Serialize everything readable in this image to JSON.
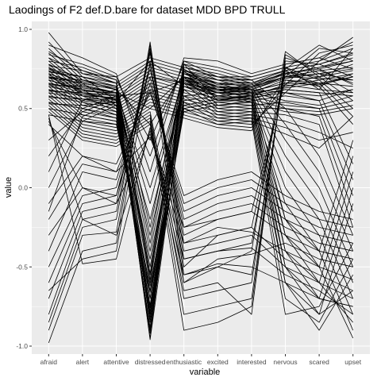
{
  "chart_data": {
    "type": "line",
    "title": "Laodings of F2 def.D.bare for dataset MDD BPD TRULL",
    "xlabel": "variable",
    "ylabel": "value",
    "categories": [
      "afraid",
      "alert",
      "attentive",
      "distressed",
      "enthusiastic",
      "excited",
      "interested",
      "nervous",
      "scared",
      "upset"
    ],
    "ylim": [
      -1.05,
      1.05
    ],
    "yticks": [
      -1.0,
      -0.5,
      0.0,
      0.5,
      1.0
    ],
    "ytick_labels": [
      "-1.0",
      "-0.5",
      "0.0",
      "0.5",
      "1.0"
    ],
    "grid": true,
    "legend": "none",
    "series": [
      {
        "values": [
          0.72,
          0.65,
          0.6,
          -0.95,
          0.75,
          0.62,
          0.64,
          0.7,
          0.72,
          0.68
        ]
      },
      {
        "values": [
          0.68,
          0.62,
          0.58,
          -0.9,
          0.7,
          0.6,
          0.61,
          0.66,
          0.7,
          0.74
        ]
      },
      {
        "values": [
          0.75,
          0.66,
          0.62,
          -0.85,
          0.72,
          0.64,
          0.63,
          0.72,
          0.75,
          0.8
        ]
      },
      {
        "values": [
          0.7,
          0.6,
          0.55,
          -0.8,
          0.68,
          0.58,
          0.6,
          0.68,
          0.66,
          0.7
        ]
      },
      {
        "values": [
          0.65,
          0.58,
          0.57,
          -0.75,
          0.66,
          0.57,
          0.58,
          0.65,
          0.62,
          0.6
        ]
      },
      {
        "values": [
          0.78,
          0.68,
          0.64,
          -0.7,
          0.74,
          0.66,
          0.66,
          0.74,
          0.78,
          0.85
        ]
      },
      {
        "values": [
          0.62,
          0.55,
          0.52,
          -0.65,
          0.64,
          0.55,
          0.56,
          0.62,
          0.6,
          0.58
        ]
      },
      {
        "values": [
          0.72,
          0.64,
          0.6,
          -0.6,
          0.7,
          0.62,
          0.62,
          0.7,
          0.74,
          0.66
        ]
      },
      {
        "values": [
          0.66,
          0.6,
          0.58,
          -0.55,
          0.67,
          0.6,
          0.59,
          0.64,
          0.68,
          0.72
        ]
      },
      {
        "values": [
          0.74,
          0.67,
          0.63,
          -0.5,
          0.72,
          0.63,
          0.64,
          0.73,
          0.7,
          0.78
        ]
      },
      {
        "values": [
          0.6,
          0.56,
          0.54,
          -0.45,
          0.62,
          0.56,
          0.57,
          0.6,
          0.58,
          0.62
        ]
      },
      {
        "values": [
          0.7,
          0.62,
          0.59,
          -0.4,
          0.69,
          0.61,
          0.62,
          0.69,
          0.72,
          0.75
        ]
      },
      {
        "values": [
          0.68,
          0.61,
          0.6,
          -0.3,
          0.68,
          0.6,
          0.61,
          0.66,
          0.65,
          0.7
        ]
      },
      {
        "values": [
          0.64,
          0.59,
          0.56,
          -0.2,
          0.66,
          0.58,
          0.6,
          0.63,
          0.66,
          0.64
        ]
      },
      {
        "values": [
          0.76,
          0.66,
          0.62,
          -0.1,
          0.73,
          0.65,
          0.65,
          0.72,
          0.76,
          0.82
        ]
      },
      {
        "values": [
          0.71,
          0.63,
          0.6,
          0.0,
          0.7,
          0.62,
          0.63,
          0.7,
          0.69,
          0.68
        ]
      },
      {
        "values": [
          -0.98,
          -0.4,
          -0.35,
          0.92,
          -0.55,
          -0.48,
          -0.5,
          -0.6,
          -0.7,
          -0.75
        ]
      },
      {
        "values": [
          -0.9,
          -0.3,
          -0.28,
          0.88,
          -0.45,
          -0.4,
          -0.38,
          -0.55,
          -0.65,
          -0.8
        ]
      },
      {
        "values": [
          -0.85,
          -0.25,
          -0.2,
          0.9,
          -0.4,
          -0.35,
          -0.3,
          -0.5,
          -0.6,
          -0.7
        ]
      },
      {
        "values": [
          -0.8,
          -0.2,
          -0.15,
          0.85,
          -0.5,
          -0.3,
          -0.25,
          -0.45,
          -0.55,
          -0.65
        ]
      },
      {
        "values": [
          -0.7,
          -0.15,
          -0.1,
          0.86,
          -0.35,
          -0.25,
          -0.28,
          -0.4,
          -0.5,
          -0.58
        ]
      },
      {
        "values": [
          -0.65,
          -0.45,
          -0.4,
          0.8,
          -0.6,
          -0.45,
          -0.42,
          -0.35,
          -0.45,
          -0.5
        ]
      },
      {
        "values": [
          -0.6,
          -0.1,
          -0.05,
          0.78,
          -0.3,
          -0.2,
          -0.15,
          -0.3,
          -0.4,
          -0.45
        ]
      },
      {
        "values": [
          -0.5,
          -0.05,
          0.0,
          0.75,
          -0.25,
          -0.15,
          -0.1,
          -0.25,
          -0.35,
          -0.4
        ]
      },
      {
        "values": [
          -0.4,
          0.1,
          0.05,
          0.7,
          -0.2,
          -0.1,
          -0.05,
          -0.2,
          -0.3,
          -0.35
        ]
      },
      {
        "values": [
          -0.3,
          0.0,
          -0.05,
          0.66,
          -0.15,
          -0.05,
          0.0,
          -0.15,
          -0.25,
          -0.3
        ]
      },
      {
        "values": [
          -0.2,
          0.15,
          0.1,
          0.62,
          -0.1,
          0.0,
          0.05,
          -0.1,
          -0.2,
          -0.25
        ]
      },
      {
        "values": [
          -0.1,
          0.2,
          0.15,
          0.6,
          -0.05,
          0.05,
          0.1,
          -0.05,
          -0.15,
          -0.2
        ]
      },
      {
        "values": [
          0.98,
          0.72,
          0.7,
          0.82,
          0.76,
          0.7,
          0.68,
          0.5,
          0.2,
          -0.3
        ]
      },
      {
        "values": [
          0.92,
          0.7,
          0.66,
          0.8,
          0.74,
          0.68,
          0.66,
          0.4,
          0.1,
          -0.4
        ]
      },
      {
        "values": [
          0.88,
          0.68,
          0.64,
          0.78,
          0.72,
          0.66,
          0.64,
          0.3,
          0.0,
          -0.5
        ]
      },
      {
        "values": [
          0.85,
          0.66,
          0.62,
          0.76,
          0.7,
          0.64,
          0.62,
          0.2,
          -0.1,
          -0.6
        ]
      },
      {
        "values": [
          0.82,
          0.64,
          0.6,
          0.74,
          0.68,
          0.62,
          0.6,
          0.1,
          -0.2,
          -0.7
        ]
      },
      {
        "values": [
          0.8,
          0.62,
          0.58,
          0.72,
          0.66,
          0.6,
          0.58,
          0.0,
          -0.3,
          -0.8
        ]
      },
      {
        "values": [
          0.78,
          0.6,
          0.56,
          0.7,
          0.64,
          0.58,
          0.56,
          -0.1,
          -0.4,
          -0.9
        ]
      },
      {
        "values": [
          0.76,
          0.58,
          0.54,
          0.68,
          0.62,
          0.56,
          0.54,
          -0.2,
          -0.5,
          -0.95
        ]
      },
      {
        "values": [
          0.74,
          0.56,
          0.52,
          0.66,
          0.6,
          0.54,
          0.52,
          -0.3,
          -0.6,
          -0.85
        ]
      },
      {
        "values": [
          0.72,
          0.54,
          0.5,
          0.64,
          0.58,
          0.52,
          0.5,
          -0.4,
          -0.7,
          -0.75
        ]
      },
      {
        "values": [
          0.7,
          0.52,
          0.48,
          0.62,
          0.56,
          0.5,
          0.48,
          -0.5,
          -0.8,
          -0.65
        ]
      },
      {
        "values": [
          0.68,
          0.5,
          0.46,
          0.6,
          0.54,
          0.48,
          0.46,
          -0.6,
          -0.9,
          -0.55
        ]
      },
      {
        "values": [
          0.66,
          0.48,
          0.44,
          0.58,
          0.52,
          0.46,
          0.44,
          -0.7,
          -0.85,
          -0.45
        ]
      },
      {
        "values": [
          0.64,
          0.46,
          0.42,
          0.56,
          0.5,
          0.44,
          0.42,
          -0.8,
          -0.75,
          -0.35
        ]
      },
      {
        "values": [
          0.62,
          0.44,
          0.4,
          0.54,
          0.48,
          0.42,
          0.4,
          0.6,
          0.8,
          0.95
        ]
      },
      {
        "values": [
          0.6,
          0.42,
          0.38,
          0.52,
          0.46,
          0.4,
          0.38,
          0.65,
          0.85,
          0.9
        ]
      },
      {
        "values": [
          0.58,
          0.4,
          0.36,
          0.5,
          0.44,
          0.38,
          0.36,
          0.7,
          0.88,
          0.85
        ]
      },
      {
        "values": [
          0.56,
          0.38,
          0.34,
          0.48,
          -0.6,
          -0.5,
          -0.55,
          0.75,
          0.9,
          0.8
        ]
      },
      {
        "values": [
          0.54,
          0.36,
          0.32,
          0.46,
          -0.7,
          -0.65,
          -0.6,
          0.78,
          0.82,
          0.75
        ]
      },
      {
        "values": [
          0.52,
          0.34,
          0.3,
          0.44,
          -0.8,
          -0.75,
          -0.7,
          0.8,
          0.78,
          0.7
        ]
      },
      {
        "values": [
          0.5,
          0.32,
          0.28,
          0.42,
          -0.9,
          -0.85,
          -0.75,
          0.82,
          0.75,
          0.65
        ]
      },
      {
        "values": [
          0.48,
          0.3,
          0.26,
          0.4,
          -0.65,
          -0.6,
          -0.8,
          0.84,
          0.72,
          0.6
        ]
      },
      {
        "values": [
          0.46,
          -0.48,
          -0.45,
          0.38,
          -0.55,
          -0.5,
          -0.4,
          0.86,
          0.7,
          0.55
        ]
      },
      {
        "values": [
          0.44,
          -0.2,
          -0.3,
          0.36,
          -0.45,
          -0.4,
          -0.35,
          0.76,
          0.68,
          0.5
        ]
      },
      {
        "values": [
          0.42,
          0.0,
          -0.1,
          0.34,
          -0.35,
          -0.3,
          -0.25,
          0.72,
          0.66,
          0.45
        ]
      },
      {
        "values": [
          0.4,
          0.2,
          0.1,
          0.32,
          -0.25,
          -0.2,
          -0.15,
          0.68,
          0.64,
          0.4
        ]
      },
      {
        "values": [
          0.75,
          0.7,
          0.55,
          -0.92,
          0.78,
          0.55,
          0.58,
          0.62,
          0.6,
          0.15
        ]
      },
      {
        "values": [
          0.7,
          0.66,
          0.52,
          -0.88,
          0.74,
          0.52,
          0.55,
          0.58,
          0.55,
          0.05
        ]
      },
      {
        "values": [
          0.66,
          0.62,
          0.5,
          -0.82,
          0.7,
          0.5,
          0.52,
          0.54,
          0.5,
          -0.05
        ]
      },
      {
        "values": [
          0.62,
          0.58,
          0.48,
          -0.78,
          0.66,
          0.48,
          0.5,
          0.5,
          0.45,
          -0.15
        ]
      },
      {
        "values": [
          0.58,
          0.54,
          0.46,
          -0.74,
          0.62,
          0.46,
          0.48,
          0.46,
          0.4,
          -0.25
        ]
      },
      {
        "values": [
          0.54,
          0.5,
          0.44,
          -0.7,
          0.58,
          0.44,
          0.46,
          0.42,
          0.35,
          0.25
        ]
      },
      {
        "values": [
          0.5,
          0.46,
          0.42,
          -0.66,
          0.54,
          0.42,
          0.44,
          0.38,
          0.3,
          0.35
        ]
      },
      {
        "values": [
          0.46,
          0.42,
          0.4,
          -0.62,
          0.5,
          0.4,
          0.42,
          0.34,
          0.25,
          0.45
        ]
      },
      {
        "values": [
          0.86,
          0.74,
          0.68,
          -0.58,
          0.8,
          0.7,
          0.7,
          0.76,
          0.62,
          0.88
        ]
      },
      {
        "values": [
          0.82,
          0.72,
          0.66,
          -0.54,
          0.78,
          0.68,
          0.68,
          0.74,
          0.64,
          0.72
        ]
      },
      {
        "values": [
          0.1,
          0.55,
          0.62,
          -0.96,
          0.58,
          0.6,
          0.62,
          0.6,
          0.55,
          0.62
        ]
      },
      {
        "values": [
          0.2,
          0.5,
          0.58,
          -0.9,
          0.55,
          0.58,
          0.6,
          0.55,
          0.52,
          0.58
        ]
      },
      {
        "values": [
          0.3,
          0.48,
          0.56,
          -0.84,
          0.52,
          0.56,
          0.58,
          0.52,
          0.5,
          0.55
        ]
      },
      {
        "values": [
          -0.15,
          0.45,
          0.54,
          -0.8,
          0.5,
          0.54,
          0.56,
          0.5,
          0.48,
          0.52
        ]
      },
      {
        "values": [
          0.0,
          0.42,
          0.52,
          -0.76,
          0.48,
          0.52,
          0.54,
          0.48,
          0.46,
          0.5
        ]
      },
      {
        "values": [
          0.9,
          0.82,
          0.72,
          0.1,
          0.82,
          0.8,
          0.72,
          0.78,
          0.82,
          0.92
        ]
      },
      {
        "values": [
          0.84,
          0.78,
          0.7,
          0.2,
          0.8,
          0.76,
          0.7,
          0.76,
          0.8,
          0.88
        ]
      },
      {
        "values": [
          0.8,
          0.76,
          0.68,
          0.3,
          0.78,
          0.74,
          0.68,
          0.74,
          0.78,
          0.84
        ]
      },
      {
        "values": [
          0.77,
          0.74,
          0.66,
          -0.25,
          0.76,
          0.72,
          0.66,
          0.72,
          0.76,
          0.8
        ]
      },
      {
        "values": [
          0.73,
          0.7,
          0.64,
          -0.35,
          0.74,
          0.7,
          0.64,
          0.7,
          0.74,
          0.76
        ]
      },
      {
        "values": [
          0.69,
          0.68,
          0.62,
          0.4,
          0.72,
          0.68,
          0.62,
          -0.2,
          -0.4,
          0.3
        ]
      },
      {
        "values": [
          0.65,
          0.64,
          0.6,
          0.5,
          0.7,
          0.66,
          0.6,
          -0.3,
          -0.5,
          0.2
        ]
      },
      {
        "values": [
          0.61,
          0.6,
          0.58,
          0.6,
          0.68,
          0.64,
          0.58,
          -0.4,
          -0.6,
          0.1
        ]
      },
      {
        "values": [
          0.57,
          0.56,
          0.56,
          0.7,
          0.66,
          0.62,
          0.56,
          -0.5,
          -0.7,
          0.0
        ]
      },
      {
        "values": [
          0.53,
          0.52,
          0.54,
          0.8,
          0.64,
          0.6,
          0.54,
          -0.6,
          -0.8,
          -0.1
        ]
      }
    ]
  }
}
